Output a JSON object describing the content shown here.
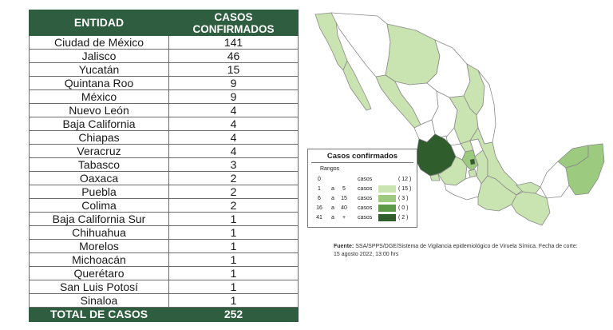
{
  "table": {
    "header_entity": "ENTIDAD",
    "header_cases_line1": "CASOS",
    "header_cases_line2": "CONFIRMADOS",
    "rows": [
      {
        "entity": "Ciudad de México",
        "cases": "141"
      },
      {
        "entity": "Jalisco",
        "cases": "46"
      },
      {
        "entity": "Yucatán",
        "cases": "15"
      },
      {
        "entity": "Quintana Roo",
        "cases": "9"
      },
      {
        "entity": "México",
        "cases": "9"
      },
      {
        "entity": "Nuevo León",
        "cases": "4"
      },
      {
        "entity": "Baja California",
        "cases": "4"
      },
      {
        "entity": "Chiapas",
        "cases": "4"
      },
      {
        "entity": "Veracruz",
        "cases": "4"
      },
      {
        "entity": "Tabasco",
        "cases": "3"
      },
      {
        "entity": "Oaxaca",
        "cases": "2"
      },
      {
        "entity": "Puebla",
        "cases": "2"
      },
      {
        "entity": "Colima",
        "cases": "2"
      },
      {
        "entity": "Baja California Sur",
        "cases": "1"
      },
      {
        "entity": "Chihuahua",
        "cases": "1"
      },
      {
        "entity": "Morelos",
        "cases": "1"
      },
      {
        "entity": "Michoacán",
        "cases": "1"
      },
      {
        "entity": "Querétaro",
        "cases": "1"
      },
      {
        "entity": "San Luis Potosí",
        "cases": "1"
      },
      {
        "entity": "Sinaloa",
        "cases": "1"
      }
    ],
    "total_label": "TOTAL DE CASOS",
    "total_value": "252"
  },
  "legend": {
    "title": "Casos confirmados",
    "subtitle": "Rangos",
    "word_a": "a",
    "word_casos": "casos",
    "rows": [
      {
        "min": "0",
        "a": "",
        "max": "",
        "count": "( 12 )",
        "color": "#ffffff"
      },
      {
        "min": "1",
        "a": "a",
        "max": "5",
        "count": "( 15 )",
        "color": "#c9e3b1"
      },
      {
        "min": "6",
        "a": "a",
        "max": "15",
        "count": "(  3 )",
        "color": "#9ccb7f"
      },
      {
        "min": "16",
        "a": "a",
        "max": "40",
        "count": "(  0 )",
        "color": "#5c9a47"
      },
      {
        "min": "41",
        "a": "a",
        "max": "+",
        "count": "(  2 )",
        "color": "#2f5d2c"
      }
    ]
  },
  "source": {
    "label": "Fuente:",
    "text": " SSA/SPPS/DGE/Sistema de Vigilancia epidemiológico de Viruela Símica. Fecha de corte: 15 agosto 2022, 13:00 hrs"
  },
  "colors": {
    "header_green": "#2f5d3f",
    "range_0": "#ffffff",
    "range_1_5": "#c9e3b1",
    "range_6_15": "#9ccb7f",
    "range_16_40": "#5c9a47",
    "range_41_plus": "#2f5d2c"
  }
}
